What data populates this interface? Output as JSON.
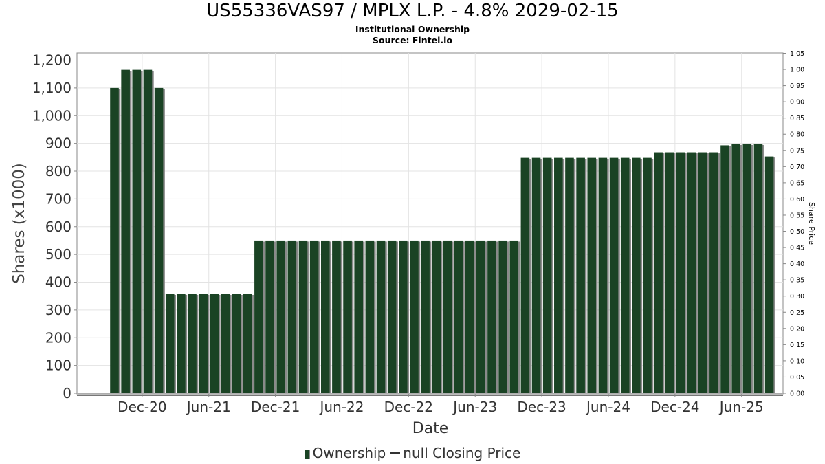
{
  "chart_data": {
    "type": "bar",
    "title": "US55336VAS97 / MPLX L.P. - 4.8% 2029-02-15",
    "subtitle_lines": [
      "Institutional Ownership",
      "Source: Fintel.io"
    ],
    "xlabel": "Date",
    "ylabel": "Shares (x1000)",
    "y2label": "Share Price",
    "ylim": [
      0,
      1230
    ],
    "y2lim": [
      0,
      1.05
    ],
    "yticks": [
      "0",
      "100",
      "200",
      "300",
      "400",
      "500",
      "600",
      "700",
      "800",
      "900",
      "1,000",
      "1,100",
      "1,200"
    ],
    "y2ticks": [
      "0.00",
      "0.05",
      "0.10",
      "0.15",
      "0.20",
      "0.25",
      "0.30",
      "0.35",
      "0.40",
      "0.45",
      "0.50",
      "0.55",
      "0.60",
      "0.65",
      "0.70",
      "0.75",
      "0.80",
      "0.85",
      "0.90",
      "0.95",
      "1.00",
      "1.05"
    ],
    "xticks": [
      "Dec-20",
      "Jun-21",
      "Dec-21",
      "Jun-22",
      "Dec-22",
      "Jun-23",
      "Dec-23",
      "Jun-24",
      "Dec-24",
      "Jun-25"
    ],
    "grid": true,
    "legend_position": "bottom",
    "series": [
      {
        "name": "Ownership",
        "color": "#1a4324",
        "values": [
          1100,
          1165,
          1165,
          1165,
          1100,
          358,
          358,
          358,
          358,
          358,
          358,
          358,
          358,
          550,
          550,
          550,
          550,
          550,
          550,
          550,
          550,
          550,
          550,
          550,
          550,
          550,
          550,
          550,
          550,
          550,
          550,
          550,
          550,
          550,
          550,
          550,
          550,
          848,
          848,
          848,
          848,
          848,
          848,
          848,
          848,
          848,
          848,
          848,
          848,
          868,
          868,
          868,
          868,
          868,
          868,
          893,
          898,
          898,
          898,
          853
        ]
      }
    ],
    "legend": [
      {
        "label": "Ownership",
        "kind": "bar",
        "color": "#1a4324"
      },
      {
        "label": "null Closing Price",
        "kind": "line",
        "color": "#333333"
      }
    ]
  }
}
